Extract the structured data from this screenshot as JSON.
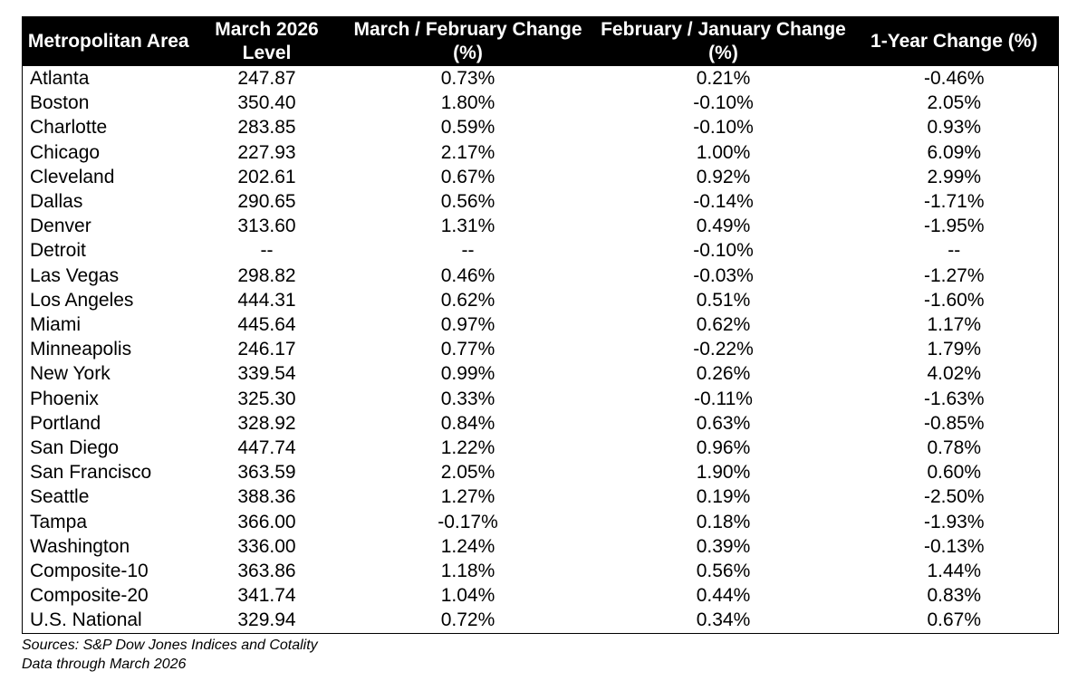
{
  "table": {
    "headers": [
      "Metropolitan Area",
      "March 2026 Level",
      "March / February Change (%)",
      "February / January Change (%)",
      "1-Year Change (%)"
    ],
    "rows": [
      [
        "Atlanta",
        "247.87",
        "0.73%",
        "0.21%",
        "-0.46%"
      ],
      [
        "Boston",
        "350.40",
        "1.80%",
        "-0.10%",
        "2.05%"
      ],
      [
        "Charlotte",
        "283.85",
        "0.59%",
        "-0.10%",
        "0.93%"
      ],
      [
        "Chicago",
        "227.93",
        "2.17%",
        "1.00%",
        "6.09%"
      ],
      [
        "Cleveland",
        "202.61",
        "0.67%",
        "0.92%",
        "2.99%"
      ],
      [
        "Dallas",
        "290.65",
        "0.56%",
        "-0.14%",
        "-1.71%"
      ],
      [
        "Denver",
        "313.60",
        "1.31%",
        "0.49%",
        "-1.95%"
      ],
      [
        "Detroit",
        "--",
        "--",
        "-0.10%",
        "--"
      ],
      [
        "Las Vegas",
        "298.82",
        "0.46%",
        "-0.03%",
        "-1.27%"
      ],
      [
        "Los Angeles",
        "444.31",
        "0.62%",
        "0.51%",
        "-1.60%"
      ],
      [
        "Miami",
        "445.64",
        "0.97%",
        "0.62%",
        "1.17%"
      ],
      [
        "Minneapolis",
        "246.17",
        "0.77%",
        "-0.22%",
        "1.79%"
      ],
      [
        "New York",
        "339.54",
        "0.99%",
        "0.26%",
        "4.02%"
      ],
      [
        "Phoenix",
        "325.30",
        "0.33%",
        "-0.11%",
        "-1.63%"
      ],
      [
        "Portland",
        "328.92",
        "0.84%",
        "0.63%",
        "-0.85%"
      ],
      [
        "San Diego",
        "447.74",
        "1.22%",
        "0.96%",
        "0.78%"
      ],
      [
        "San Francisco",
        "363.59",
        "2.05%",
        "1.90%",
        "0.60%"
      ],
      [
        "Seattle",
        "388.36",
        "1.27%",
        "0.19%",
        "-2.50%"
      ],
      [
        "Tampa",
        "366.00",
        "-0.17%",
        "0.18%",
        "-1.93%"
      ],
      [
        "Washington",
        "336.00",
        "1.24%",
        "0.39%",
        "-0.13%"
      ],
      [
        "Composite-10",
        "363.86",
        "1.18%",
        "0.56%",
        "1.44%"
      ],
      [
        "Composite-20",
        "341.74",
        "1.04%",
        "0.44%",
        "0.83%"
      ],
      [
        "U.S. National",
        "329.94",
        "0.72%",
        "0.34%",
        "0.67%"
      ]
    ]
  },
  "notes": {
    "sources": "Sources: S&P Dow Jones Indices and Cotality",
    "data_through": "Data through March 2026"
  },
  "colors": {
    "header_bg": "#000000",
    "header_text": "#ffffff",
    "body_text": "#000000"
  }
}
